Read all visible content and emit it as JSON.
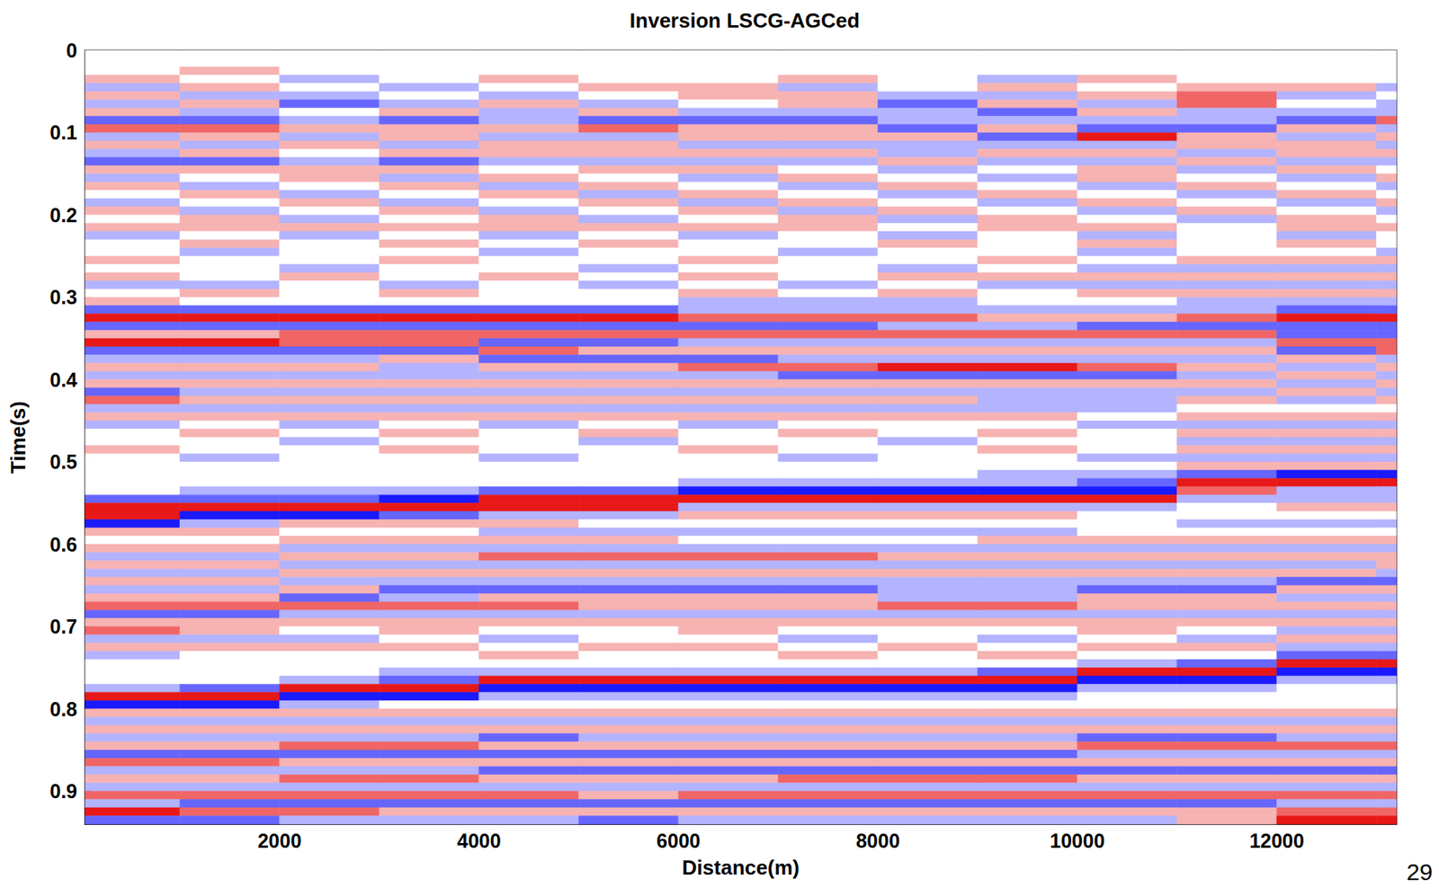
{
  "chart_data": {
    "type": "heatmap",
    "title": "Inversion LSCG-AGCed",
    "x_label": "Distance(m)",
    "y_label": "Time(s)",
    "annotation": "29",
    "xlim": [
      50,
      13200
    ],
    "xticks": [
      2000,
      4000,
      6000,
      8000,
      10000,
      12000
    ],
    "ylim": [
      0,
      0.94
    ],
    "yticks": [
      0,
      0.1,
      0.2,
      0.3,
      0.4,
      0.5,
      0.6,
      0.7,
      0.8,
      0.9
    ],
    "grid": false,
    "amplitude_range": [
      -3,
      3
    ],
    "x": [
      500,
      1500,
      2500,
      3500,
      4500,
      5500,
      6500,
      7500,
      8500,
      9500,
      10500,
      11500,
      12500,
      13500
    ],
    "t": [
      0.005,
      0.015,
      0.025,
      0.035,
      0.045,
      0.055,
      0.065,
      0.075,
      0.085,
      0.095,
      0.105,
      0.115,
      0.125,
      0.135,
      0.145,
      0.155,
      0.165,
      0.175,
      0.185,
      0.195,
      0.205,
      0.215,
      0.225,
      0.235,
      0.245,
      0.255,
      0.265,
      0.275,
      0.285,
      0.295,
      0.305,
      0.315,
      0.325,
      0.335,
      0.345,
      0.355,
      0.365,
      0.375,
      0.385,
      0.395,
      0.405,
      0.415,
      0.425,
      0.435,
      0.445,
      0.455,
      0.465,
      0.475,
      0.485,
      0.495,
      0.505,
      0.515,
      0.525,
      0.535,
      0.545,
      0.555,
      0.565,
      0.575,
      0.585,
      0.595,
      0.605,
      0.615,
      0.625,
      0.635,
      0.645,
      0.655,
      0.665,
      0.675,
      0.685,
      0.695,
      0.705,
      0.715,
      0.725,
      0.735,
      0.745,
      0.755,
      0.765,
      0.775,
      0.785,
      0.795,
      0.805,
      0.815,
      0.825,
      0.835,
      0.845,
      0.855,
      0.865,
      0.875,
      0.885,
      0.895,
      0.905,
      0.915,
      0.925,
      0.935
    ],
    "amplitude": [
      [
        0,
        0,
        0,
        0,
        0,
        0,
        0,
        0,
        0,
        0,
        0,
        0,
        0,
        0
      ],
      [
        0,
        0,
        0,
        0,
        0,
        0,
        0,
        0,
        0,
        0,
        0,
        0,
        0,
        0
      ],
      [
        0,
        1,
        0,
        0,
        0,
        0,
        0,
        0,
        0,
        0,
        0,
        0,
        0,
        0
      ],
      [
        1,
        0,
        -1,
        0,
        1,
        0,
        0,
        1,
        0,
        -1,
        1,
        0,
        0,
        0
      ],
      [
        -1,
        1,
        0,
        -1,
        0,
        1,
        1,
        -1,
        0,
        1,
        0,
        1,
        1,
        -1
      ],
      [
        1,
        -1,
        -1,
        0,
        -1,
        0,
        1,
        1,
        -1,
        -1,
        1,
        2,
        -1,
        0
      ],
      [
        -1,
        1,
        -2,
        -1,
        1,
        -1,
        0,
        1,
        -2,
        1,
        -1,
        2,
        0,
        -1
      ],
      [
        1,
        -1,
        0,
        1,
        -1,
        1,
        -1,
        -1,
        -1,
        -2,
        1,
        -1,
        -1,
        -1
      ],
      [
        -2,
        -2,
        -1,
        -2,
        -1,
        -2,
        -2,
        -2,
        -1,
        -1,
        -1,
        -1,
        -2,
        2
      ],
      [
        2,
        2,
        1,
        1,
        1,
        2,
        1,
        1,
        -2,
        1,
        -2,
        -2,
        1,
        -1
      ],
      [
        -1,
        1,
        -1,
        1,
        -1,
        -1,
        1,
        1,
        1,
        -2,
        3,
        1,
        -1,
        1
      ],
      [
        1,
        -1,
        1,
        -1,
        1,
        1,
        -1,
        -1,
        -1,
        -1,
        -1,
        1,
        1,
        -1
      ],
      [
        -1,
        1,
        0,
        1,
        1,
        1,
        1,
        1,
        -1,
        1,
        1,
        -1,
        1,
        1
      ],
      [
        -2,
        -2,
        -1,
        -2,
        -1,
        -1,
        -1,
        -1,
        1,
        -1,
        -1,
        1,
        -1,
        -1
      ],
      [
        1,
        1,
        1,
        1,
        0,
        1,
        1,
        0,
        -1,
        0,
        1,
        -1,
        1,
        0
      ],
      [
        -1,
        0,
        1,
        -1,
        1,
        0,
        -1,
        1,
        0,
        -1,
        1,
        0,
        -1,
        1
      ],
      [
        1,
        -1,
        0,
        1,
        -1,
        1,
        0,
        -1,
        1,
        0,
        -1,
        1,
        0,
        -1
      ],
      [
        0,
        1,
        -1,
        0,
        1,
        -1,
        1,
        0,
        -1,
        1,
        0,
        -1,
        1,
        0
      ],
      [
        -1,
        0,
        1,
        -1,
        0,
        1,
        -1,
        1,
        0,
        -1,
        1,
        0,
        -1,
        1
      ],
      [
        1,
        -1,
        0,
        1,
        -1,
        0,
        1,
        -1,
        1,
        0,
        -1,
        1,
        0,
        -1
      ],
      [
        0,
        1,
        -1,
        0,
        1,
        -1,
        0,
        1,
        -1,
        1,
        0,
        -1,
        1,
        0
      ],
      [
        1,
        1,
        1,
        1,
        1,
        1,
        1,
        1,
        0,
        1,
        1,
        0,
        1,
        1
      ],
      [
        -1,
        0,
        -1,
        0,
        -1,
        0,
        -1,
        0,
        -1,
        0,
        -1,
        0,
        -1,
        0
      ],
      [
        0,
        1,
        0,
        1,
        0,
        1,
        0,
        0,
        1,
        0,
        1,
        0,
        1,
        0
      ],
      [
        0,
        -1,
        0,
        0,
        -1,
        0,
        0,
        -1,
        0,
        0,
        -1,
        0,
        0,
        -1
      ],
      [
        1,
        0,
        0,
        1,
        0,
        0,
        1,
        0,
        0,
        1,
        0,
        1,
        1,
        1
      ],
      [
        0,
        0,
        -1,
        0,
        0,
        -1,
        0,
        0,
        -1,
        0,
        -1,
        -1,
        -1,
        -1
      ],
      [
        1,
        0,
        1,
        0,
        1,
        0,
        1,
        0,
        1,
        1,
        1,
        1,
        1,
        1
      ],
      [
        -1,
        -1,
        0,
        -1,
        0,
        -1,
        0,
        -1,
        0,
        -1,
        -1,
        -1,
        -1,
        -1
      ],
      [
        0,
        1,
        0,
        1,
        0,
        0,
        1,
        0,
        1,
        0,
        1,
        1,
        1,
        1
      ],
      [
        1,
        0,
        0,
        0,
        0,
        0,
        -1,
        -1,
        -1,
        0,
        0,
        -1,
        -1,
        -1
      ],
      [
        -2,
        -2,
        -2,
        -2,
        -2,
        -2,
        -1,
        -1,
        -1,
        -1,
        -1,
        -1,
        -2,
        -2
      ],
      [
        3,
        3,
        3,
        3,
        3,
        3,
        2,
        2,
        2,
        1,
        1,
        2,
        3,
        3
      ],
      [
        -2,
        -2,
        -2,
        -2,
        -2,
        -2,
        -2,
        -2,
        -1,
        -1,
        -2,
        -2,
        -2,
        -2
      ],
      [
        1,
        1,
        2,
        2,
        2,
        2,
        2,
        2,
        2,
        2,
        2,
        2,
        -2,
        -2
      ],
      [
        3,
        3,
        2,
        2,
        -2,
        -2,
        -1,
        -1,
        -1,
        -1,
        -1,
        -1,
        2,
        2
      ],
      [
        -2,
        -2,
        -2,
        -2,
        2,
        1,
        1,
        1,
        1,
        1,
        1,
        1,
        -2,
        2
      ],
      [
        -1,
        -1,
        -1,
        1,
        -2,
        -2,
        -2,
        -1,
        -1,
        -1,
        -1,
        -1,
        1,
        -1
      ],
      [
        1,
        1,
        1,
        -1,
        1,
        1,
        2,
        2,
        3,
        3,
        2,
        1,
        -1,
        1
      ],
      [
        -1,
        -1,
        -1,
        -1,
        -1,
        -1,
        -1,
        -2,
        -2,
        -2,
        -2,
        -1,
        1,
        -1
      ],
      [
        1,
        1,
        1,
        1,
        1,
        1,
        1,
        1,
        1,
        1,
        1,
        1,
        -1,
        1
      ],
      [
        -2,
        -1,
        -1,
        -1,
        -1,
        -1,
        -1,
        -1,
        -1,
        -1,
        -1,
        -1,
        1,
        -1
      ],
      [
        2,
        1,
        1,
        1,
        1,
        1,
        1,
        1,
        1,
        -1,
        -1,
        1,
        -1,
        1
      ],
      [
        -1,
        -1,
        -1,
        -1,
        -1,
        -1,
        -1,
        -1,
        -1,
        -1,
        -1,
        0,
        0,
        0
      ],
      [
        1,
        1,
        1,
        1,
        1,
        1,
        1,
        1,
        1,
        1,
        0,
        1,
        1,
        1
      ],
      [
        -1,
        0,
        -1,
        0,
        -1,
        0,
        -1,
        0,
        0,
        0,
        -1,
        -1,
        -1,
        -1
      ],
      [
        0,
        1,
        0,
        1,
        0,
        1,
        0,
        1,
        0,
        1,
        0,
        1,
        1,
        1
      ],
      [
        0,
        0,
        -1,
        0,
        0,
        -1,
        0,
        0,
        -1,
        0,
        0,
        -1,
        -1,
        -1
      ],
      [
        1,
        0,
        0,
        1,
        0,
        0,
        1,
        0,
        0,
        1,
        0,
        1,
        1,
        1
      ],
      [
        0,
        -1,
        0,
        0,
        -1,
        0,
        0,
        -1,
        0,
        0,
        -1,
        -1,
        -1,
        -1
      ],
      [
        0,
        0,
        0,
        0,
        0,
        0,
        0,
        0,
        0,
        0,
        0,
        1,
        1,
        1
      ],
      [
        0,
        0,
        0,
        0,
        0,
        0,
        0,
        0,
        0,
        -1,
        -1,
        -2,
        -3,
        -3
      ],
      [
        0,
        0,
        0,
        0,
        0,
        0,
        -1,
        -1,
        -1,
        -1,
        -2,
        3,
        3,
        3
      ],
      [
        0,
        -1,
        -1,
        -1,
        -2,
        -2,
        -3,
        -3,
        -3,
        -3,
        -3,
        2,
        -1,
        -1
      ],
      [
        -2,
        -2,
        -2,
        -3,
        3,
        3,
        3,
        3,
        3,
        3,
        3,
        -1,
        -1,
        -1
      ],
      [
        3,
        3,
        3,
        3,
        3,
        3,
        -1,
        -1,
        -1,
        -1,
        -1,
        0,
        1,
        1
      ],
      [
        3,
        -3,
        -3,
        -2,
        -1,
        -1,
        1,
        1,
        1,
        1,
        0,
        0,
        0,
        0
      ],
      [
        -3,
        -1,
        1,
        1,
        1,
        0,
        0,
        0,
        0,
        0,
        0,
        -1,
        -1,
        -1
      ],
      [
        1,
        1,
        0,
        0,
        -1,
        -1,
        -1,
        -1,
        -1,
        -1,
        0,
        0,
        0,
        0
      ],
      [
        0,
        0,
        1,
        1,
        1,
        1,
        0,
        0,
        0,
        1,
        1,
        1,
        1,
        1
      ],
      [
        1,
        1,
        -1,
        -1,
        -1,
        -1,
        -1,
        -1,
        -1,
        -1,
        -1,
        -1,
        -1,
        -1
      ],
      [
        -1,
        -1,
        1,
        1,
        2,
        2,
        2,
        2,
        1,
        1,
        1,
        1,
        1,
        1
      ],
      [
        1,
        1,
        -1,
        -1,
        -1,
        -1,
        -1,
        -1,
        -1,
        -1,
        -1,
        -1,
        -1,
        1
      ],
      [
        -1,
        -1,
        1,
        1,
        1,
        1,
        1,
        1,
        1,
        1,
        1,
        1,
        1,
        -1
      ],
      [
        1,
        1,
        -1,
        -1,
        -1,
        -1,
        -1,
        -1,
        -1,
        -1,
        -1,
        -1,
        -2,
        -2
      ],
      [
        -1,
        -1,
        1,
        -2,
        -2,
        -2,
        -2,
        -2,
        -1,
        -1,
        -2,
        -2,
        1,
        1
      ],
      [
        1,
        1,
        -2,
        -1,
        1,
        1,
        1,
        1,
        -1,
        -1,
        1,
        1,
        -1,
        -1
      ],
      [
        2,
        2,
        2,
        2,
        2,
        1,
        1,
        1,
        2,
        2,
        1,
        1,
        1,
        1
      ],
      [
        -2,
        -2,
        -1,
        -1,
        -1,
        -1,
        -1,
        -1,
        -1,
        -1,
        -1,
        -1,
        -1,
        -1
      ],
      [
        1,
        1,
        1,
        1,
        1,
        1,
        1,
        1,
        1,
        1,
        1,
        1,
        1,
        1
      ],
      [
        2,
        1,
        0,
        1,
        0,
        0,
        1,
        0,
        0,
        0,
        1,
        0,
        -1,
        -1
      ],
      [
        -1,
        -1,
        -1,
        0,
        -1,
        0,
        0,
        -1,
        0,
        -1,
        0,
        -1,
        1,
        1
      ],
      [
        1,
        1,
        1,
        1,
        0,
        1,
        1,
        0,
        1,
        0,
        1,
        1,
        -1,
        -1
      ],
      [
        -1,
        0,
        0,
        0,
        1,
        0,
        0,
        1,
        0,
        1,
        0,
        0,
        -2,
        -2
      ],
      [
        0,
        0,
        0,
        0,
        0,
        0,
        0,
        0,
        0,
        0,
        -1,
        -2,
        3,
        3
      ],
      [
        0,
        0,
        0,
        -1,
        -1,
        -1,
        -1,
        -1,
        -1,
        -2,
        3,
        3,
        -3,
        -3
      ],
      [
        0,
        0,
        -1,
        -2,
        3,
        3,
        3,
        3,
        3,
        3,
        -3,
        -3,
        -1,
        -1
      ],
      [
        -1,
        -2,
        3,
        3,
        -3,
        -3,
        -3,
        -3,
        -3,
        -3,
        -1,
        -1,
        0,
        0
      ],
      [
        3,
        3,
        -3,
        -3,
        -1,
        -1,
        -1,
        -1,
        -1,
        -1,
        0,
        0,
        0,
        0
      ],
      [
        -3,
        -3,
        -1,
        0,
        0,
        0,
        0,
        0,
        0,
        0,
        0,
        0,
        0,
        0
      ],
      [
        1,
        1,
        1,
        1,
        1,
        1,
        1,
        1,
        1,
        1,
        1,
        1,
        1,
        1
      ],
      [
        -1,
        -1,
        -1,
        -1,
        -1,
        -1,
        -1,
        -1,
        -1,
        -1,
        -1,
        -1,
        -1,
        -1
      ],
      [
        1,
        1,
        1,
        1,
        1,
        1,
        1,
        1,
        1,
        1,
        1,
        1,
        1,
        1
      ],
      [
        -1,
        -1,
        -1,
        -1,
        -2,
        -1,
        -1,
        -1,
        -1,
        -1,
        -2,
        -2,
        -1,
        -1
      ],
      [
        1,
        1,
        2,
        2,
        1,
        1,
        1,
        1,
        1,
        1,
        2,
        2,
        2,
        2
      ],
      [
        -2,
        -2,
        -2,
        -2,
        -2,
        -2,
        -2,
        -2,
        -2,
        -2,
        -1,
        -1,
        -1,
        -1
      ],
      [
        2,
        2,
        1,
        1,
        1,
        1,
        1,
        1,
        1,
        1,
        1,
        1,
        1,
        1
      ],
      [
        -1,
        -1,
        -1,
        -1,
        -2,
        -2,
        -2,
        -2,
        -2,
        -2,
        -2,
        -2,
        -2,
        -2
      ],
      [
        1,
        1,
        2,
        2,
        1,
        1,
        1,
        2,
        2,
        2,
        1,
        1,
        1,
        1
      ],
      [
        -1,
        -1,
        -1,
        -1,
        -1,
        -1,
        -1,
        -1,
        -1,
        -1,
        -1,
        -1,
        -1,
        -1
      ],
      [
        2,
        2,
        2,
        2,
        2,
        1,
        2,
        2,
        2,
        2,
        2,
        2,
        2,
        2
      ],
      [
        -1,
        -2,
        -2,
        -2,
        -2,
        -2,
        -2,
        -2,
        -2,
        -2,
        -2,
        -2,
        -1,
        -1
      ],
      [
        3,
        2,
        2,
        1,
        1,
        1,
        1,
        1,
        1,
        1,
        1,
        1,
        2,
        2
      ],
      [
        -2,
        -2,
        -1,
        -1,
        -1,
        -2,
        -1,
        -1,
        -1,
        -1,
        -1,
        1,
        3,
        3
      ]
    ]
  }
}
